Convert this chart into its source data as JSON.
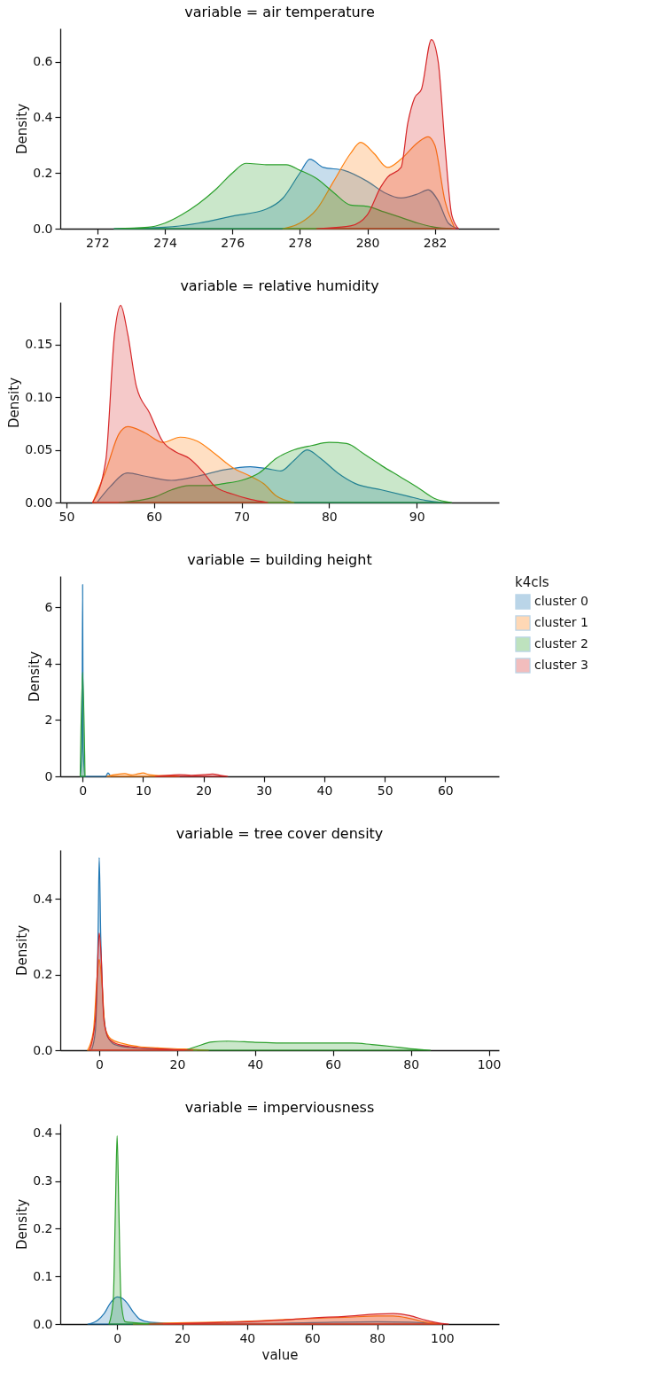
{
  "chart_data": [
    {
      "type": "area",
      "title": "variable = air temperature",
      "ylabel": "Density",
      "xlim": [
        270.9,
        283.9
      ],
      "xticks": [
        272,
        274,
        276,
        278,
        280,
        282
      ],
      "ylim": [
        0,
        0.72
      ],
      "yticks": [
        {
          "value": 0,
          "label": "0.0"
        },
        {
          "value": 0.2,
          "label": "0.2"
        },
        {
          "value": 0.4,
          "label": "0.4"
        },
        {
          "value": 0.6,
          "label": "0.6"
        }
      ],
      "series": [
        {
          "color": "#1f77b4",
          "x": [
            272.5,
            274,
            275,
            276,
            277,
            277.5,
            278,
            278.3,
            278.7,
            279.3,
            280,
            280.5,
            281,
            281.5,
            281.8,
            282.1,
            282.4,
            282.7
          ],
          "values": [
            0,
            0.005,
            0.02,
            0.045,
            0.07,
            0.11,
            0.2,
            0.25,
            0.22,
            0.21,
            0.17,
            0.13,
            0.11,
            0.125,
            0.14,
            0.1,
            0.02,
            0
          ]
        },
        {
          "color": "#ff7f0e",
          "x": [
            277.5,
            278,
            278.5,
            279,
            279.5,
            279.8,
            280.2,
            280.6,
            281,
            281.5,
            281.8,
            282,
            282.3,
            282.6
          ],
          "values": [
            0,
            0.02,
            0.07,
            0.17,
            0.27,
            0.31,
            0.27,
            0.22,
            0.25,
            0.31,
            0.33,
            0.3,
            0.1,
            0
          ]
        },
        {
          "color": "#2ca02c",
          "x": [
            272.5,
            273.5,
            274,
            274.5,
            275,
            275.5,
            276,
            276.4,
            277,
            277.6,
            278,
            278.5,
            279,
            279.5,
            280,
            280.5,
            281,
            281.5,
            282,
            282.5
          ],
          "values": [
            0,
            0.005,
            0.02,
            0.05,
            0.09,
            0.14,
            0.2,
            0.235,
            0.23,
            0.23,
            0.21,
            0.18,
            0.13,
            0.085,
            0.08,
            0.06,
            0.04,
            0.02,
            0.005,
            0
          ]
        },
        {
          "color": "#d62728",
          "x": [
            278.5,
            279.5,
            280,
            280.4,
            280.6,
            281,
            281.2,
            281.4,
            281.6,
            281.9,
            282.1,
            282.3,
            282.5,
            282.7
          ],
          "values": [
            0,
            0.01,
            0.05,
            0.15,
            0.185,
            0.22,
            0.38,
            0.47,
            0.5,
            0.68,
            0.6,
            0.3,
            0.05,
            0
          ]
        }
      ]
    },
    {
      "type": "area",
      "title": "variable = relative humidity",
      "ylabel": "Density",
      "xlim": [
        49.3,
        99.4
      ],
      "xticks": [
        50,
        60,
        70,
        80,
        90
      ],
      "ylim": [
        0,
        0.19
      ],
      "yticks": [
        {
          "value": 0,
          "label": "0.00"
        },
        {
          "value": 0.05,
          "label": "0.05"
        },
        {
          "value": 0.1,
          "label": "0.10"
        },
        {
          "value": 0.15,
          "label": "0.15"
        }
      ],
      "series": [
        {
          "color": "#1f77b4",
          "x": [
            53.5,
            55,
            57,
            59,
            62,
            65,
            68,
            71,
            73,
            74.5,
            76,
            77.5,
            79,
            81,
            83,
            86,
            89,
            91,
            93
          ],
          "values": [
            0,
            0.015,
            0.028,
            0.025,
            0.021,
            0.025,
            0.031,
            0.034,
            0.032,
            0.03,
            0.04,
            0.05,
            0.042,
            0.028,
            0.018,
            0.012,
            0.006,
            0.002,
            0
          ]
        },
        {
          "color": "#ff7f0e",
          "x": [
            53,
            54.5,
            56,
            57,
            59,
            61,
            63,
            65,
            67,
            69,
            71,
            72.5,
            74,
            76
          ],
          "values": [
            0,
            0.03,
            0.065,
            0.072,
            0.066,
            0.057,
            0.062,
            0.058,
            0.046,
            0.033,
            0.025,
            0.018,
            0.006,
            0
          ]
        },
        {
          "color": "#2ca02c",
          "x": [
            56,
            60,
            62,
            64,
            66,
            68,
            70,
            72,
            74,
            76,
            78,
            80,
            82,
            84,
            86,
            88,
            90,
            92,
            94
          ],
          "values": [
            0,
            0.005,
            0.012,
            0.016,
            0.016,
            0.018,
            0.021,
            0.028,
            0.042,
            0.05,
            0.054,
            0.057,
            0.056,
            0.046,
            0.035,
            0.025,
            0.015,
            0.004,
            0
          ]
        },
        {
          "color": "#d62728",
          "x": [
            53,
            54.5,
            55.5,
            56.2,
            57,
            58,
            59.5,
            61,
            62.5,
            64,
            65.5,
            67,
            69,
            71,
            73
          ],
          "values": [
            0,
            0.04,
            0.16,
            0.187,
            0.16,
            0.11,
            0.085,
            0.058,
            0.048,
            0.042,
            0.03,
            0.015,
            0.008,
            0.003,
            0
          ]
        }
      ]
    },
    {
      "type": "area",
      "title": "variable = building height",
      "ylabel": "Density",
      "legend_title": "k4cls",
      "legend": "right",
      "xlim": [
        -3.7,
        68.9
      ],
      "xticks": [
        0,
        10,
        20,
        30,
        40,
        50,
        60
      ],
      "ylim": [
        0,
        7.1
      ],
      "yticks": [
        0,
        2,
        4,
        6
      ],
      "series": [
        {
          "name": "cluster 0",
          "color": "#1f77b4",
          "x": [
            -0.4,
            -0.1,
            0,
            0.1,
            0.4,
            3.8,
            4.2,
            4.6
          ],
          "values": [
            0,
            1,
            6.8,
            1,
            0,
            0,
            0.12,
            0
          ]
        },
        {
          "name": "cluster 1",
          "color": "#ff7f0e",
          "x": [
            4,
            5,
            7,
            8,
            9,
            10,
            11,
            12,
            14,
            16
          ],
          "values": [
            0,
            0.05,
            0.1,
            0.05,
            0.08,
            0.12,
            0.06,
            0.04,
            0.02,
            0
          ]
        },
        {
          "name": "cluster 2",
          "color": "#2ca02c",
          "x": [
            -0.4,
            0,
            0.4
          ],
          "values": [
            0,
            3.7,
            0
          ]
        },
        {
          "name": "cluster 3",
          "color": "#d62728",
          "x": [
            12,
            14,
            16,
            18,
            20,
            21.5,
            23,
            24
          ],
          "values": [
            0,
            0.04,
            0.06,
            0.04,
            0.06,
            0.08,
            0.03,
            0
          ]
        }
      ]
    },
    {
      "type": "area",
      "title": "variable = tree cover density",
      "ylabel": "Density",
      "xlim": [
        -10,
        102.6
      ],
      "xticks": [
        0,
        20,
        40,
        60,
        80,
        100
      ],
      "ylim": [
        0,
        0.53
      ],
      "yticks": [
        {
          "value": 0,
          "label": "0.0"
        },
        {
          "value": 0.2,
          "label": "0.2"
        },
        {
          "value": 0.4,
          "label": "0.4"
        }
      ],
      "series": [
        {
          "color": "#1f77b4",
          "x": [
            -2,
            -1,
            -0.3,
            0,
            0.4,
            1,
            2,
            4,
            8,
            15,
            25
          ],
          "values": [
            0,
            0.05,
            0.3,
            0.51,
            0.3,
            0.12,
            0.04,
            0.015,
            0.007,
            0.003,
            0
          ]
        },
        {
          "color": "#ff7f0e",
          "x": [
            -3,
            -1.5,
            -0.5,
            0,
            0.7,
            1.5,
            3,
            6,
            10,
            15,
            22,
            28
          ],
          "values": [
            0,
            0.05,
            0.2,
            0.24,
            0.18,
            0.06,
            0.03,
            0.018,
            0.01,
            0.006,
            0.003,
            0
          ]
        },
        {
          "color": "#2ca02c",
          "x": [
            22,
            25,
            29,
            33,
            40,
            50,
            60,
            65,
            70,
            75,
            80,
            85
          ],
          "values": [
            0,
            0.01,
            0.022,
            0.024,
            0.021,
            0.019,
            0.019,
            0.019,
            0.015,
            0.01,
            0.004,
            0
          ]
        },
        {
          "color": "#d62728",
          "x": [
            -2.5,
            -1,
            -0.2,
            0,
            0.5,
            1.2,
            2.5,
            5,
            10,
            16,
            24
          ],
          "values": [
            0,
            0.08,
            0.28,
            0.31,
            0.25,
            0.08,
            0.03,
            0.015,
            0.007,
            0.003,
            0
          ]
        }
      ]
    },
    {
      "type": "area",
      "title": "variable = imperviousness",
      "xlabel": "value",
      "ylabel": "Density",
      "xlim": [
        -17.5,
        117.5
      ],
      "xticks": [
        0,
        20,
        40,
        60,
        80,
        100
      ],
      "ylim": [
        0,
        0.42
      ],
      "yticks": [
        {
          "value": 0,
          "label": "0.0"
        },
        {
          "value": 0.1,
          "label": "0.1"
        },
        {
          "value": 0.2,
          "label": "0.2"
        },
        {
          "value": 0.3,
          "label": "0.3"
        },
        {
          "value": 0.4,
          "label": "0.4"
        }
      ],
      "series": [
        {
          "color": "#1f77b4",
          "x": [
            -9,
            -6,
            -4,
            -2,
            0,
            1,
            3,
            5,
            7,
            10,
            15,
            25,
            40,
            60,
            80,
            90,
            100
          ],
          "values": [
            0,
            0.008,
            0.022,
            0.045,
            0.057,
            0.056,
            0.045,
            0.025,
            0.01,
            0.004,
            0.002,
            0.001,
            0.001,
            0.003,
            0.005,
            0.004,
            0
          ]
        },
        {
          "color": "#ff7f0e",
          "x": [
            5,
            15,
            30,
            40,
            50,
            60,
            70,
            80,
            85,
            90,
            95,
            100
          ],
          "values": [
            0,
            0.002,
            0.004,
            0.006,
            0.009,
            0.012,
            0.014,
            0.017,
            0.017,
            0.012,
            0.004,
            0
          ]
        },
        {
          "color": "#2ca02c",
          "x": [
            -2.5,
            -1.2,
            -0.5,
            0,
            0.5,
            1.2,
            2.5,
            5,
            10,
            14
          ],
          "values": [
            0,
            0.05,
            0.25,
            0.395,
            0.25,
            0.05,
            0.005,
            0.003,
            0.001,
            0
          ]
        },
        {
          "color": "#d62728",
          "x": [
            10,
            30,
            40,
            50,
            60,
            70,
            80,
            85,
            90,
            95,
            100,
            102
          ],
          "values": [
            0,
            0.003,
            0.005,
            0.008,
            0.013,
            0.016,
            0.021,
            0.022,
            0.018,
            0.008,
            0.001,
            0
          ]
        }
      ]
    }
  ]
}
